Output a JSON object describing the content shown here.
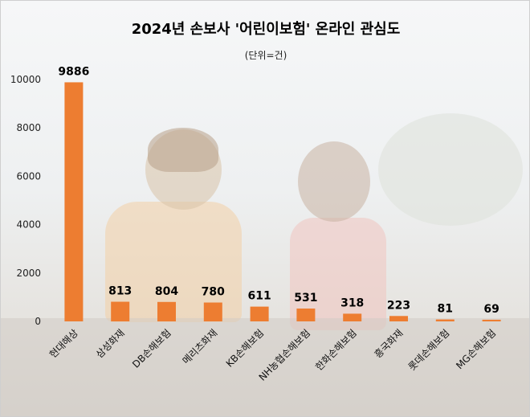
{
  "chart_data": {
    "type": "bar",
    "title": "2024년 손보사 '어린이보험' 온라인 관심도",
    "subtitle": "(단위=건)",
    "categories": [
      "현대해상",
      "삼성화재",
      "DB손해보험",
      "메리츠화재",
      "KB손해보험",
      "NH농협손해보험",
      "한화손해보험",
      "흥국화재",
      "롯데손해보험",
      "MG손해보험"
    ],
    "values": [
      9886,
      813,
      804,
      780,
      611,
      531,
      318,
      223,
      81,
      69
    ],
    "data_labels": [
      "9886",
      "813",
      "804",
      "780",
      "611",
      "531",
      "318",
      "223",
      "81",
      "69"
    ],
    "y_ticks": [
      "0",
      "2000",
      "4000",
      "6000",
      "8000",
      "10000"
    ],
    "ylim": [
      0,
      10000
    ],
    "grid": false,
    "bar_color": "#ED7D31"
  }
}
